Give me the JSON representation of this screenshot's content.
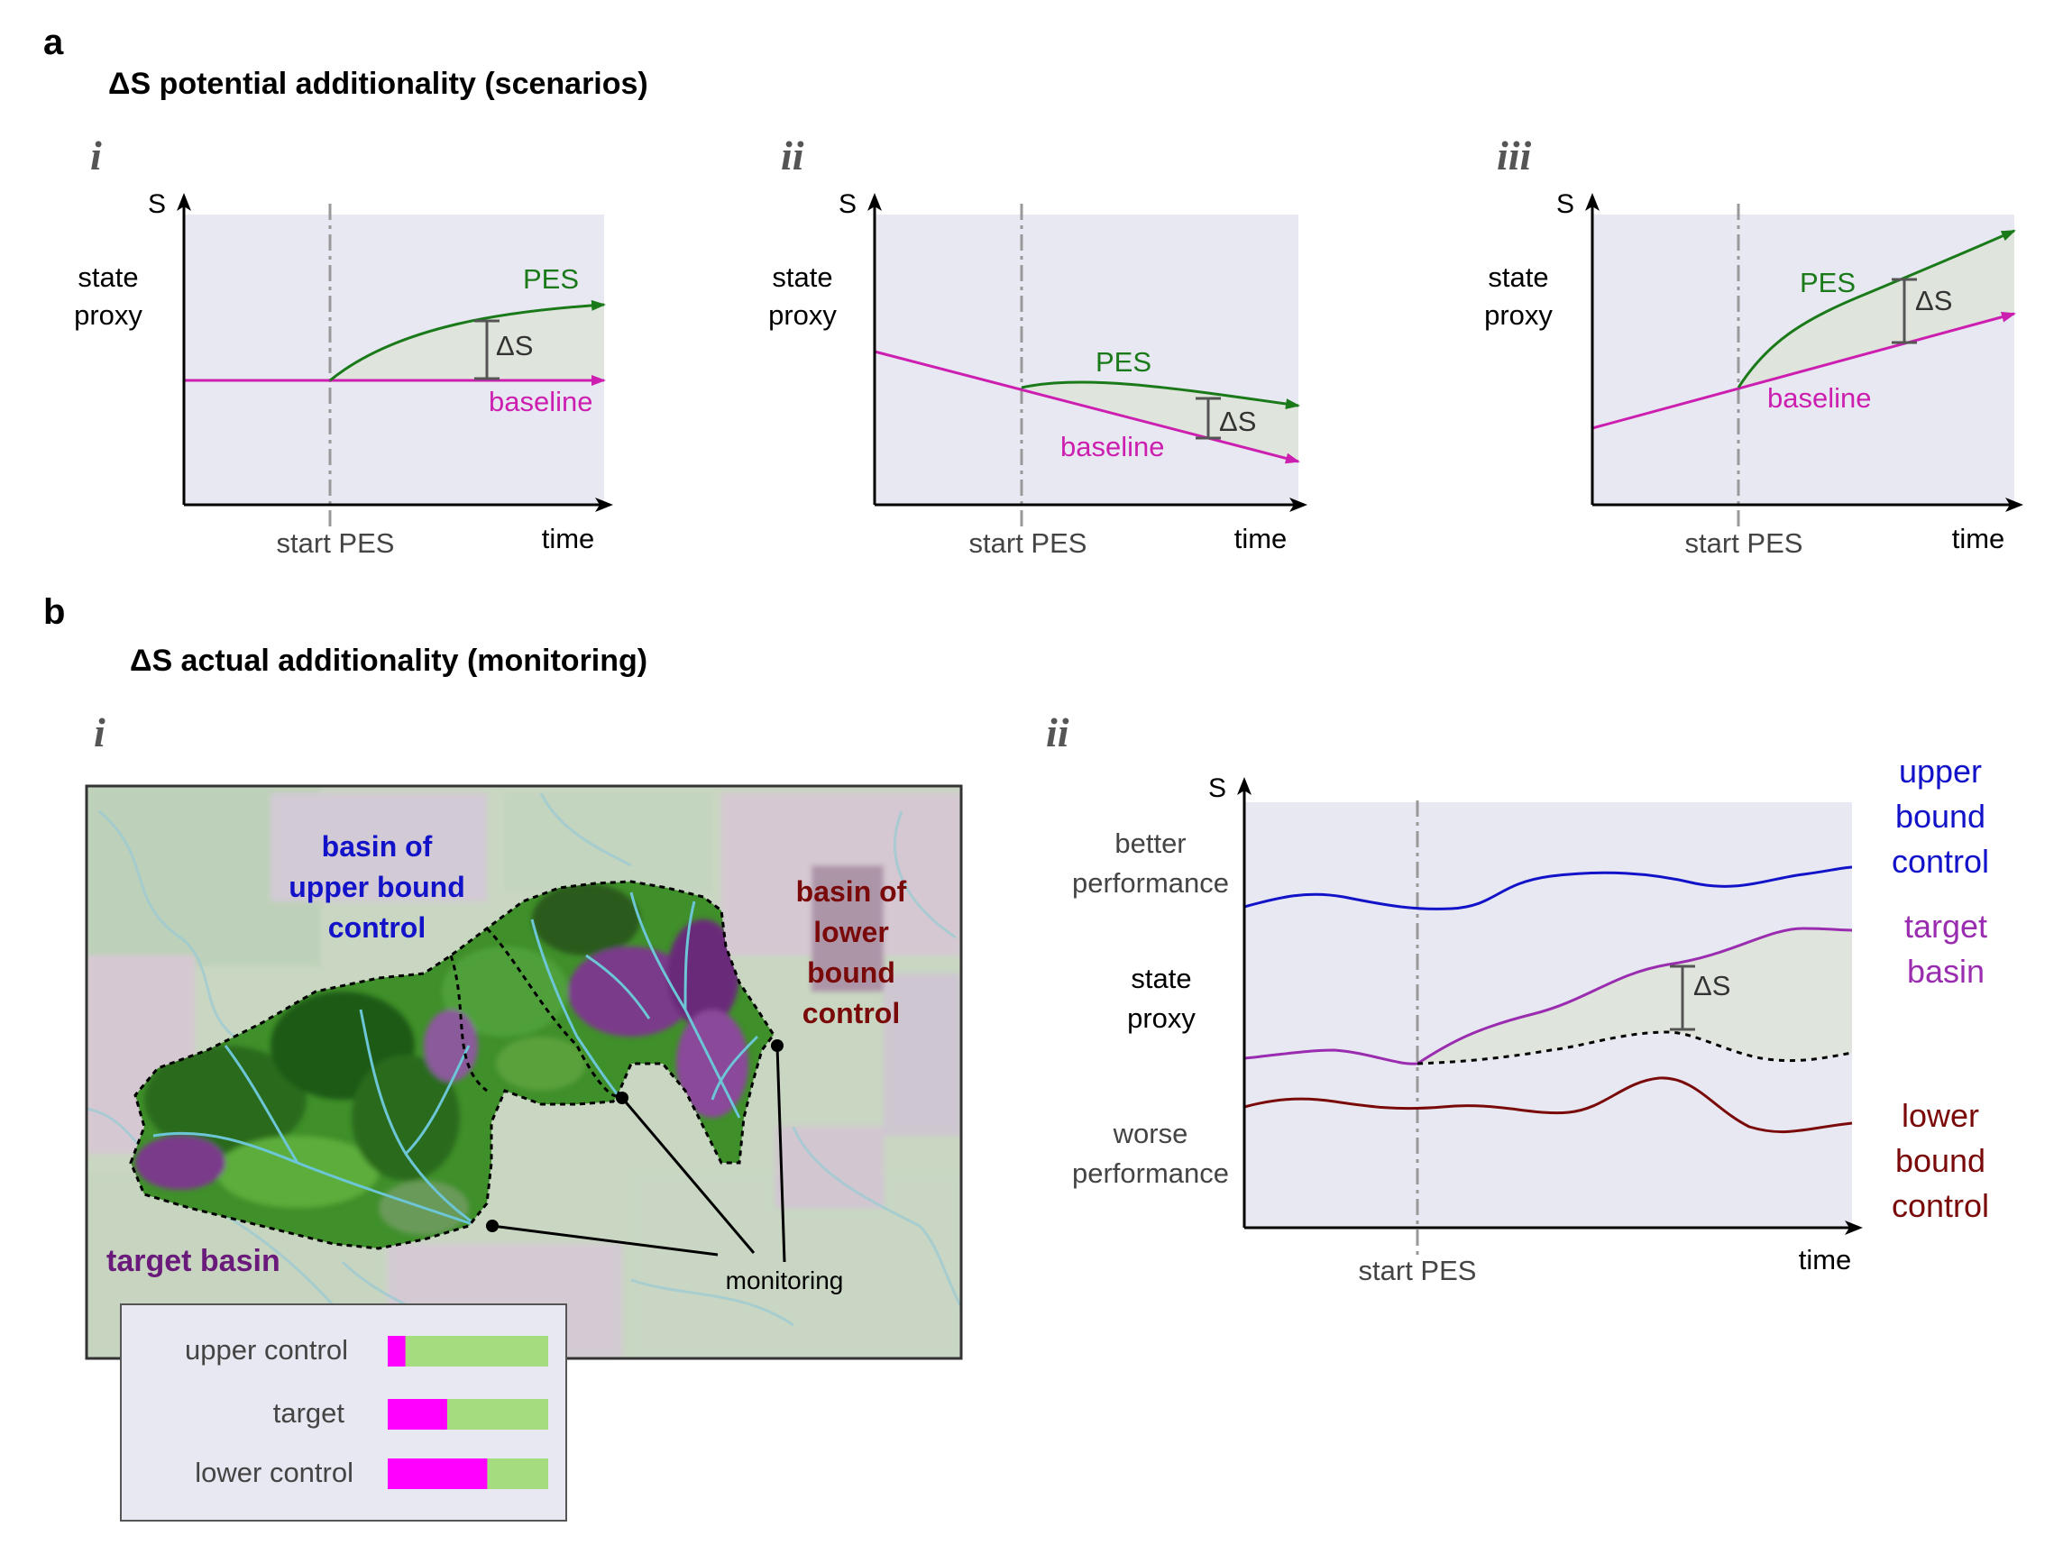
{
  "panel_a": {
    "letter": "a",
    "title": "ΔS potential additionality (scenarios)",
    "subpanels": [
      {
        "numeral": "i",
        "y_axis": "S",
        "y_label_1": "state",
        "y_label_2": "proxy",
        "start": "start PES",
        "x_axis": "time",
        "pes": "PES",
        "baseline": "baseline",
        "delta": "ΔS"
      },
      {
        "numeral": "ii",
        "y_axis": "S",
        "y_label_1": "state",
        "y_label_2": "proxy",
        "start": "start PES",
        "x_axis": "time",
        "pes": "PES",
        "baseline": "baseline",
        "delta": "ΔS"
      },
      {
        "numeral": "iii",
        "y_axis": "S",
        "y_label_1": "state",
        "y_label_2": "proxy",
        "start": "start PES",
        "x_axis": "time",
        "pes": "PES",
        "baseline": "baseline",
        "delta": "ΔS"
      }
    ]
  },
  "panel_b": {
    "letter": "b",
    "title": "ΔS actual additionality (monitoring)",
    "map": {
      "numeral": "i",
      "upper_1": "basin of",
      "upper_2": "upper bound",
      "upper_3": "control",
      "lower_1": "basin of",
      "lower_2": "lower",
      "lower_3": "bound",
      "lower_4": "control",
      "target": "target basin",
      "monitoring": "monitoring"
    },
    "legend": {
      "rows": [
        {
          "label": "upper control",
          "magenta_fraction": 0.11
        },
        {
          "label": "target",
          "magenta_fraction": 0.37
        },
        {
          "label": "lower control",
          "magenta_fraction": 0.62
        }
      ]
    },
    "timeseries": {
      "numeral": "ii",
      "y_axis": "S",
      "better_1": "better",
      "better_2": "performance",
      "state_1": "state",
      "state_2": "proxy",
      "worse_1": "worse",
      "worse_2": "performance",
      "start": "start PES",
      "x_axis": "time",
      "delta": "ΔS",
      "upper_1": "upper",
      "upper_2": "bound",
      "upper_3": "control",
      "target_1": "target",
      "target_2": "basin",
      "lower_1": "lower",
      "lower_2": "bound",
      "lower_3": "control"
    }
  },
  "colors": {
    "pes": "#1a7a1a",
    "baseline": "#cc1fb0",
    "plot_bg": "#e8e8f2",
    "fill": "#dfe5dc",
    "upper": "#1212c8",
    "target": "#9a2cb0",
    "lower": "#7a0a0a",
    "target_label": "#6a1a7a",
    "legend_magenta": "#ff00ff",
    "legend_green": "#a6dc80"
  }
}
